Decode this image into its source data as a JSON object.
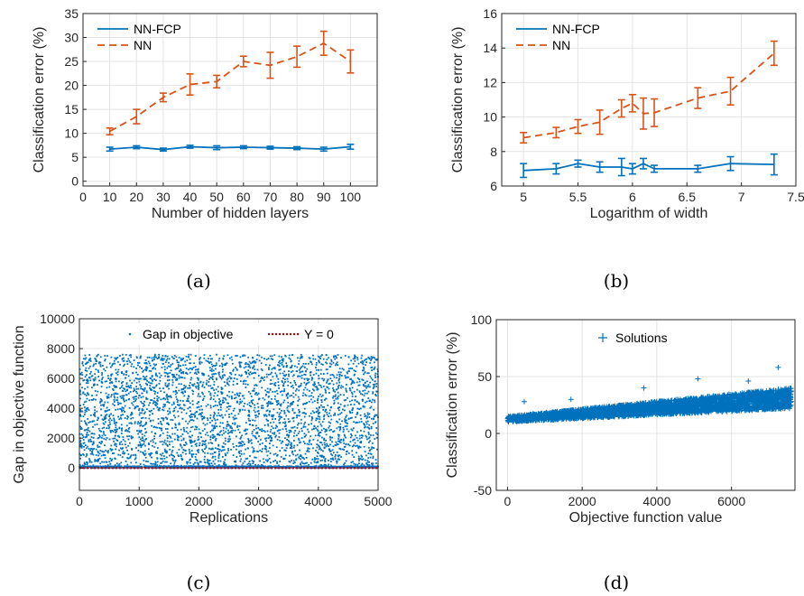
{
  "colors": {
    "blue": "#0072BD",
    "orange": "#D95319",
    "red": "#CC0000"
  },
  "captions": [
    "(a)",
    "(b)",
    "(c)",
    "(d)"
  ],
  "chart_data": [
    {
      "id": "a",
      "type": "line",
      "xlabel": "Number of hidden layers",
      "ylabel": "Classification error (%)",
      "xlim": [
        0,
        110
      ],
      "ylim": [
        -1,
        35
      ],
      "xticks": [
        0,
        10,
        20,
        30,
        40,
        50,
        60,
        70,
        80,
        90,
        100
      ],
      "yticks": [
        0,
        5,
        10,
        15,
        20,
        25,
        30,
        35
      ],
      "grid": true,
      "legend_position": "top-left",
      "x": [
        10,
        20,
        30,
        40,
        50,
        60,
        70,
        80,
        90,
        100
      ],
      "series": [
        {
          "name": "NN-FCP",
          "style": "solid",
          "color": "#0072BD",
          "values": [
            6.7,
            7.1,
            6.6,
            7.2,
            7.0,
            7.1,
            7.0,
            6.9,
            6.7,
            7.2
          ],
          "errors": [
            0.4,
            0.3,
            0.3,
            0.3,
            0.4,
            0.3,
            0.3,
            0.3,
            0.4,
            0.5
          ]
        },
        {
          "name": "NN",
          "style": "dashed",
          "color": "#D95319",
          "values": [
            10.4,
            13.5,
            17.5,
            20.2,
            20.8,
            25.0,
            24.2,
            26.0,
            28.8,
            25.0
          ],
          "errors": [
            0.7,
            1.5,
            0.9,
            2.2,
            1.3,
            1.1,
            2.7,
            2.2,
            2.5,
            2.4
          ]
        }
      ]
    },
    {
      "id": "b",
      "type": "line",
      "xlabel": "Logarithm of width",
      "ylabel": "Classification error (%)",
      "xlim": [
        4.8,
        7.5
      ],
      "ylim": [
        6,
        16
      ],
      "xticks": [
        5,
        5.5,
        6,
        6.5,
        7,
        7.5
      ],
      "yticks": [
        6,
        8,
        10,
        12,
        14,
        16
      ],
      "grid": true,
      "legend_position": "top-left",
      "x": [
        5.0,
        5.3,
        5.5,
        5.7,
        5.9,
        6.0,
        6.1,
        6.2,
        6.6,
        6.9,
        7.3
      ],
      "series": [
        {
          "name": "NN-FCP",
          "style": "solid",
          "color": "#0072BD",
          "values": [
            6.9,
            7.0,
            7.3,
            7.1,
            7.1,
            7.0,
            7.3,
            7.0,
            7.0,
            7.3,
            7.25
          ],
          "errors": [
            0.4,
            0.3,
            0.2,
            0.3,
            0.5,
            0.3,
            0.3,
            0.2,
            0.2,
            0.4,
            0.6
          ]
        },
        {
          "name": "NN",
          "style": "dashed",
          "color": "#D95319",
          "values": [
            8.8,
            9.1,
            9.45,
            9.7,
            10.5,
            10.8,
            10.2,
            10.25,
            11.1,
            11.5,
            13.7
          ],
          "errors": [
            0.3,
            0.3,
            0.4,
            0.7,
            0.5,
            0.5,
            0.9,
            0.8,
            0.6,
            0.8,
            0.7
          ]
        }
      ]
    },
    {
      "id": "c",
      "type": "scatter",
      "xlabel": "Replications",
      "ylabel": "Gap in objective function",
      "xlim": [
        0,
        5000
      ],
      "ylim": [
        -1500,
        10000
      ],
      "xticks": [
        0,
        1000,
        2000,
        3000,
        4000,
        5000
      ],
      "yticks": [
        0,
        2000,
        4000,
        6000,
        8000,
        10000
      ],
      "grid": true,
      "legend_position": "top",
      "series": [
        {
          "name": "Gap in objective",
          "marker": "dot",
          "color": "#0072BD",
          "count": 5000,
          "x_range": [
            1,
            5000
          ],
          "y_range": [
            0,
            7600
          ],
          "near_zero_fraction": 0.3
        },
        {
          "name": "Y = 0",
          "style": "dotted",
          "color": "#CC0000",
          "y": 0
        }
      ]
    },
    {
      "id": "d",
      "type": "scatter",
      "xlabel": "Objective function value",
      "ylabel": "Classification error (%)",
      "xlim": [
        -300,
        7700
      ],
      "ylim": [
        -50,
        100
      ],
      "xticks": [
        0,
        2000,
        4000,
        6000
      ],
      "yticks": [
        -50,
        0,
        50,
        100
      ],
      "grid": true,
      "legend_position": "top",
      "series": [
        {
          "name": "Solutions",
          "marker": "plus",
          "color": "#0072BD",
          "count": 3000,
          "x_range": [
            0,
            7600
          ],
          "y_at_x0": [
            10,
            15
          ],
          "y_at_xmax": [
            22,
            40
          ],
          "outliers": [
            [
              7250,
              58
            ],
            [
              5100,
              48
            ],
            [
              6450,
              46
            ],
            [
              450,
              28
            ],
            [
              1700,
              30
            ],
            [
              3650,
              40
            ]
          ]
        }
      ]
    }
  ]
}
